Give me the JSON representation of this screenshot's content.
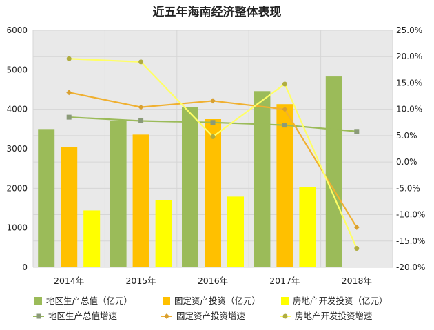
{
  "chart_data": {
    "type": "bar",
    "title": "近五年海南经济整体表现",
    "categories": [
      "2014年",
      "2015年",
      "2016年",
      "2017年",
      "2018年"
    ],
    "ylim": [
      0,
      6000
    ],
    "y_ticks": [
      "0",
      "1000",
      "2000",
      "3000",
      "4000",
      "5000",
      "6000"
    ],
    "y2lim": [
      -0.2,
      0.25
    ],
    "y2_ticks": [
      "-20.0%",
      "-15.0%",
      "-10.0%",
      "-5.0%",
      "0.0%",
      "5.0%",
      "10.0%",
      "15.0%",
      "20.0%",
      "25.0%"
    ],
    "grid": true,
    "legend_position": "bottom",
    "bar_series": [
      {
        "name": "地区生产总值（亿元）",
        "color": "#9bbb59",
        "values": [
          3500,
          3700,
          4050,
          4460,
          4830
        ]
      },
      {
        "name": "固定资产投资（亿元）",
        "color": "#ffc000",
        "values": [
          3040,
          3360,
          3750,
          4130,
          null
        ]
      },
      {
        "name": "房地产开发投资（亿元）",
        "color": "#ffff00",
        "values": [
          1440,
          1700,
          1790,
          2030,
          null
        ]
      }
    ],
    "line_series": [
      {
        "name": "地区生产总值增速",
        "color": "#9bbb59",
        "marker": "square",
        "values": [
          0.085,
          0.078,
          0.075,
          0.07,
          0.058
        ]
      },
      {
        "name": "固定资产投资增速",
        "color": "#f0b030",
        "marker": "diamond",
        "values": [
          0.132,
          0.104,
          0.116,
          0.1,
          -0.124
        ]
      },
      {
        "name": "房地产开发投资增速",
        "color": "#ffff66",
        "marker": "circle",
        "values": [
          0.196,
          0.19,
          0.048,
          0.148,
          -0.164
        ]
      }
    ]
  }
}
